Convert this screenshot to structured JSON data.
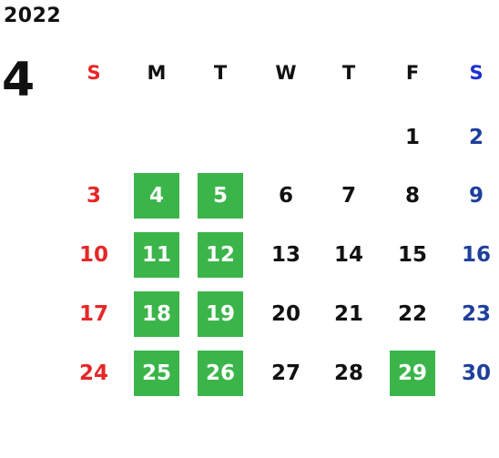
{
  "calendar": {
    "year": "2022",
    "month": "4",
    "weekdays": [
      "S",
      "M",
      "T",
      "W",
      "T",
      "F",
      "S"
    ],
    "weeks": [
      [
        "",
        "",
        "",
        "",
        "",
        "1",
        "2"
      ],
      [
        "3",
        "4",
        "5",
        "6",
        "7",
        "8",
        "9"
      ],
      [
        "10",
        "11",
        "12",
        "13",
        "14",
        "15",
        "16"
      ],
      [
        "17",
        "18",
        "19",
        "20",
        "21",
        "22",
        "23"
      ],
      [
        "24",
        "25",
        "26",
        "27",
        "28",
        "29",
        "30"
      ]
    ],
    "highlighted_days": [
      "4",
      "5",
      "11",
      "12",
      "18",
      "19",
      "25",
      "26",
      "29"
    ],
    "colors": {
      "sunday": "#e62727",
      "saturday": "#1e3f9a",
      "saturday_header": "#1f2fd4",
      "weekday": "#111111",
      "highlight_bg": "#3bb54a",
      "highlight_text": "#ffffff"
    }
  }
}
